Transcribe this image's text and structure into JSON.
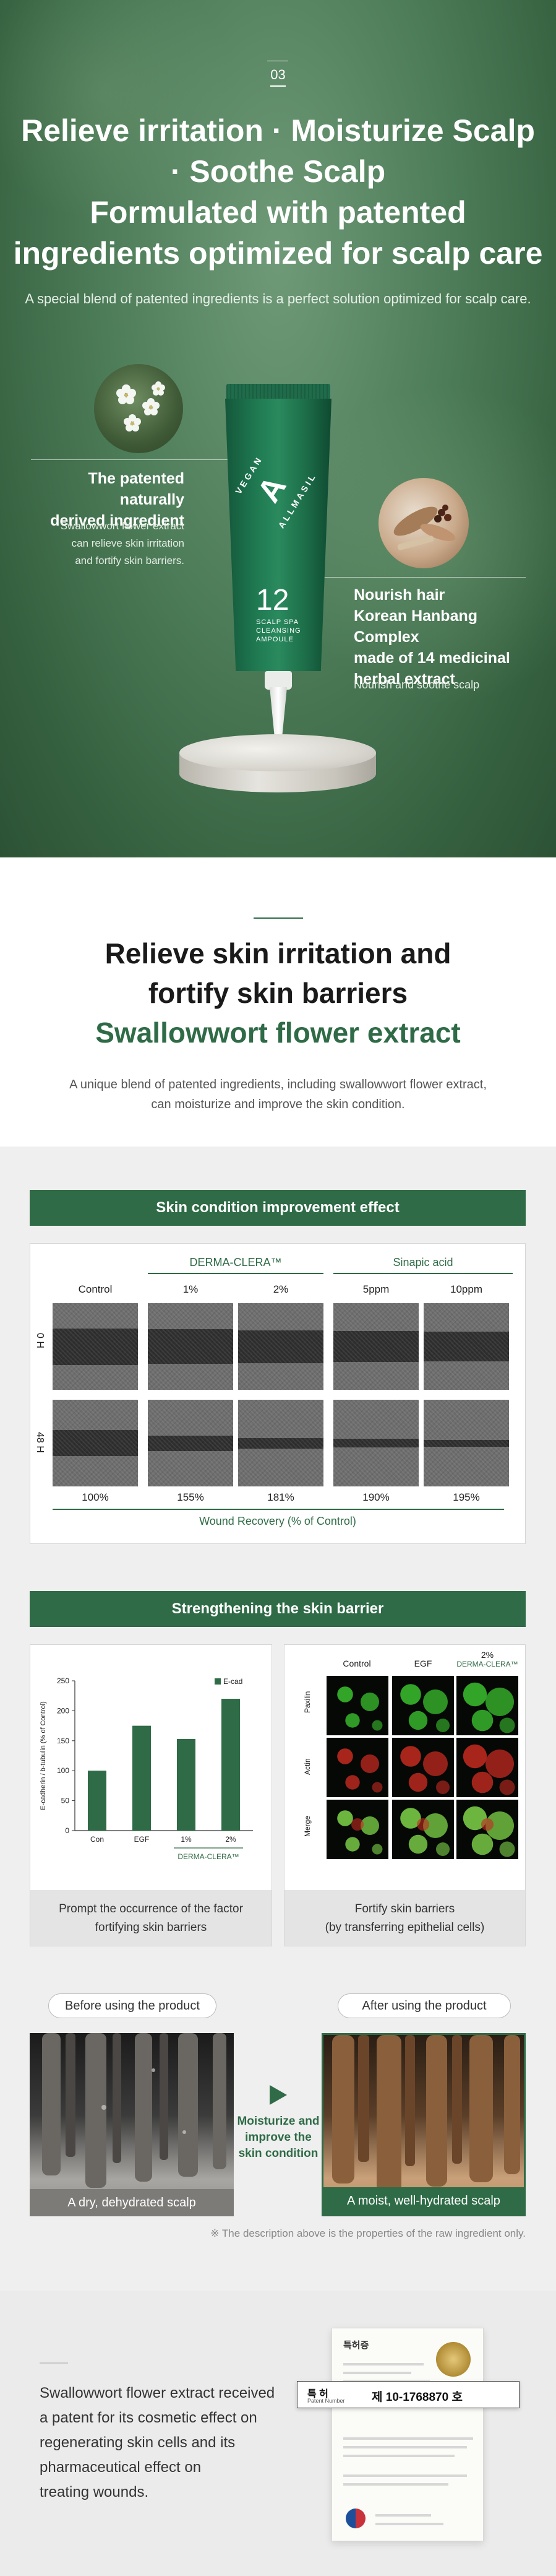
{
  "hero": {
    "number": "03",
    "headline_lines": [
      "Relieve irritation · Moisturize Scalp",
      "· Soothe Scalp",
      "Formulated with patented",
      "ingredients optimized for scalp care"
    ],
    "subtitle": "A special blend of patented ingredients is a perfect solution optimized for scalp care.",
    "left": {
      "title_lines": [
        "The patented naturally",
        "derived ingredient"
      ],
      "desc_lines": [
        "Swallowwort flower extract",
        "can relieve skin irritation",
        "and fortify skin barriers."
      ]
    },
    "right": {
      "title_lines": [
        "Nourish hair",
        "Korean Hanbang Complex",
        "made of 14 medicinal",
        "herbal extract"
      ],
      "desc": "Nourish and soothe scalp"
    },
    "product": {
      "brand_top": "VEGAN",
      "brand_letter": "A",
      "brand_bottom": "ALLMASIL",
      "number": "12",
      "label_lines": [
        "SCALP SPA",
        "CLEANSING",
        "AMPOULE"
      ]
    }
  },
  "section2": {
    "title_lines": [
      "Relieve skin irritation and",
      "fortify skin barriers"
    ],
    "title_green": "Swallowwort flower extract",
    "sub_lines": [
      "A unique blend of patented ingredients, including swallowwort flower extract,",
      "can moisturize and improve the skin condition."
    ]
  },
  "improvement": {
    "bar": "Skin condition improvement effect",
    "group1": "DERMA-CLERA™",
    "group2": "Sinapic acid",
    "columns": [
      "Control",
      "1%",
      "2%",
      "5ppm",
      "10ppm"
    ],
    "row_labels": [
      "0 H",
      "48 H"
    ],
    "gap_0h": [
      0.42,
      0.4,
      0.38,
      0.36,
      0.34
    ],
    "gap_48h": [
      0.3,
      0.18,
      0.12,
      0.1,
      0.08
    ],
    "recovery": [
      "100%",
      "155%",
      "181%",
      "190%",
      "195%"
    ],
    "footer": "Wound Recovery (% of Control)"
  },
  "barrier": {
    "bar": "Strengthening the skin barrier",
    "chart_caption_lines": [
      "Prompt the occurrence of the factor",
      "fortifying skin barriers"
    ],
    "micro_caption_lines": [
      "Fortify skin barriers",
      "(by transferring epithelial cells)"
    ],
    "micro_columns": [
      "Control",
      "EGF",
      "2%"
    ],
    "micro_col3_sub": "DERMA-CLERA™",
    "micro_rows": [
      "Paxilin",
      "Actin",
      "Merge"
    ]
  },
  "chart_data": {
    "type": "bar",
    "categories": [
      "Con",
      "EGF",
      "1%",
      "2%"
    ],
    "series": [
      {
        "name": "E-cad",
        "values": [
          100,
          175,
          153,
          220
        ]
      }
    ],
    "ylabel": "E-cadherin / b-tubulin (% of Control)",
    "ylim": [
      0,
      250
    ],
    "yticks": [
      0,
      50,
      100,
      150,
      200,
      250
    ],
    "group_label": "DERMA-CLERA™",
    "legend": "top-right",
    "color": "#2e6b46"
  },
  "compare": {
    "before_pill": "Before using the product",
    "after_pill": "After using the product",
    "before_caption": "A dry, dehydrated scalp",
    "after_caption": "A moist, well-hydrated scalp",
    "middle_lines": [
      "Moisturize and",
      "improve the",
      "skin condition"
    ],
    "note": "※ The description above is the properties of the raw ingredient only."
  },
  "patent": {
    "text_lines": [
      "Swallowwort flower extract received",
      "a patent for its cosmetic effect on",
      "regenerating skin cells and its",
      "pharmaceutical effect on",
      "treating wounds."
    ],
    "cert_title": "특허증",
    "box_label": "특 허",
    "box_label_en": "Patent Number",
    "box_value": "제 10-1768870 호"
  },
  "colors": {
    "accent": "#2e6b46",
    "hero_bg": "#4d7c58"
  }
}
